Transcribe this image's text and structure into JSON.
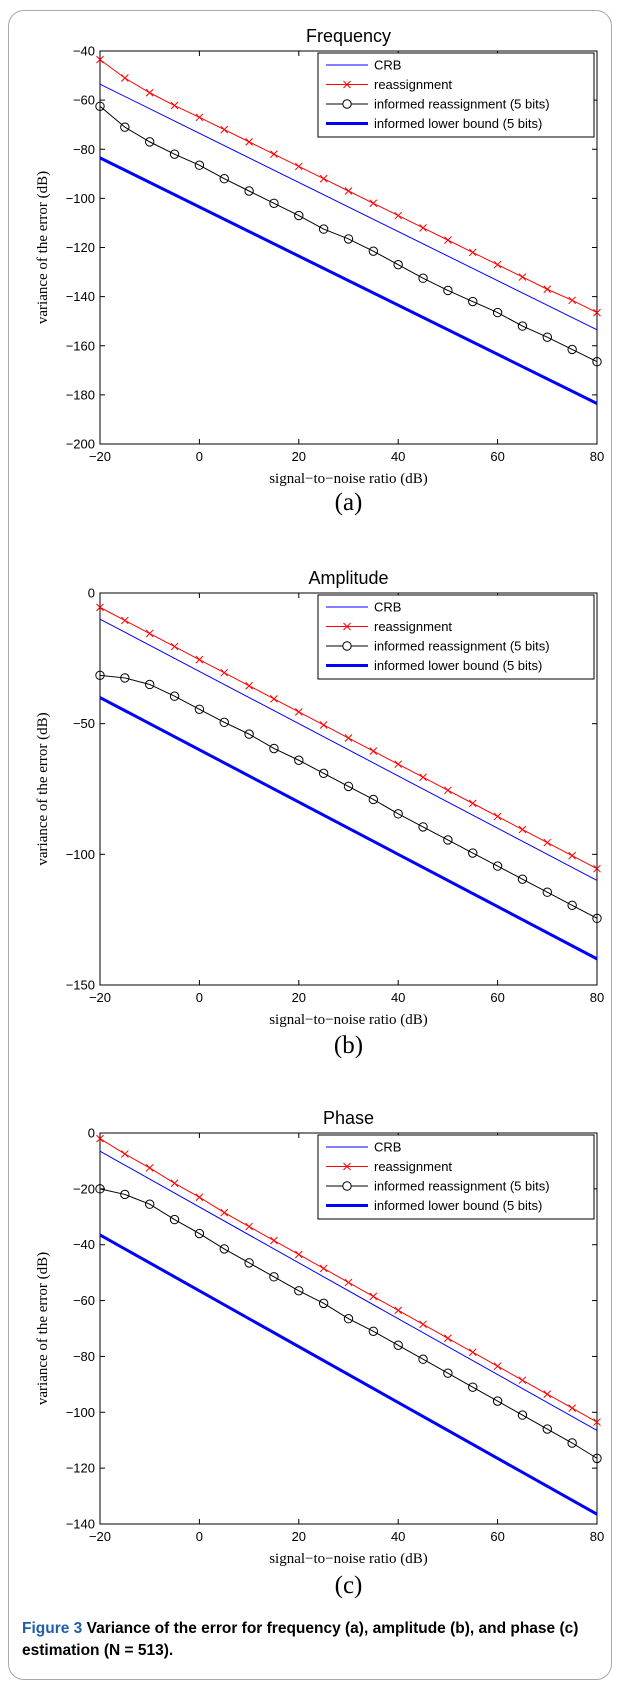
{
  "caption": {
    "label": "Figure 3",
    "text": "Variance of the error for frequency (a), amplitude (b), and phase (c) estimation (N = 513)."
  },
  "colors": {
    "crb": "#0000ff",
    "reassignment": "#ff0000",
    "informed": "#000000",
    "lower_bound": "#0000ff"
  },
  "chart_data": [
    {
      "type": "line",
      "panel_label": "(a)",
      "title": "Frequency",
      "xlabel": "signal−to−noise ratio (dB)",
      "ylabel": "variance of the error (dB)",
      "xlim": [
        -20,
        80
      ],
      "ylim": [
        -200,
        -40
      ],
      "xticks": [
        -20,
        0,
        20,
        40,
        60,
        80
      ],
      "yticks": [
        -200,
        -180,
        -160,
        -140,
        -120,
        -100,
        -80,
        -60,
        -40
      ],
      "grid": false,
      "legend_position": "top-right",
      "x": [
        -20,
        -15,
        -10,
        -5,
        0,
        5,
        10,
        15,
        20,
        25,
        30,
        35,
        40,
        45,
        50,
        55,
        60,
        65,
        70,
        75,
        80
      ],
      "series": [
        {
          "name": "CRB",
          "style": "thin-line",
          "x": [
            -20,
            80
          ],
          "values": [
            -53.5,
            -153.5
          ]
        },
        {
          "name": "reassignment",
          "style": "x-markers",
          "values": [
            -43.5,
            -51,
            -57,
            -62.2,
            -67,
            -72,
            -77,
            -82,
            -87,
            -92,
            -97,
            -102,
            -107,
            -112,
            -117,
            -122,
            -127,
            -132,
            -137,
            -141.5,
            -146.5
          ]
        },
        {
          "name": "informed reassignment (5 bits)",
          "style": "circle-markers",
          "values": [
            -62.5,
            -71,
            -77,
            -82,
            -86.5,
            -92,
            -97,
            -102,
            -107,
            -112.5,
            -116.5,
            -121.5,
            -127,
            -132.5,
            -137.5,
            -142,
            -146.5,
            -152,
            -156.5,
            -161.5,
            -166.5
          ]
        },
        {
          "name": "informed lower bound (5 bits)",
          "style": "thick-line",
          "x": [
            -20,
            80
          ],
          "values": [
            -83.5,
            -183.5
          ]
        }
      ]
    },
    {
      "type": "line",
      "panel_label": "(b)",
      "title": "Amplitude",
      "xlabel": "signal−to−noise ratio (dB)",
      "ylabel": "variance of the error (dB)",
      "xlim": [
        -20,
        80
      ],
      "ylim": [
        -150,
        0
      ],
      "xticks": [
        -20,
        0,
        20,
        40,
        60,
        80
      ],
      "yticks": [
        -150,
        -100,
        -50,
        0
      ],
      "grid": false,
      "legend_position": "top-right",
      "x": [
        -20,
        -15,
        -10,
        -5,
        0,
        5,
        10,
        15,
        20,
        25,
        30,
        35,
        40,
        45,
        50,
        55,
        60,
        65,
        70,
        75,
        80
      ],
      "series": [
        {
          "name": "CRB",
          "style": "thin-line",
          "x": [
            -20,
            80
          ],
          "values": [
            -10,
            -110
          ]
        },
        {
          "name": "reassignment",
          "style": "x-markers",
          "values": [
            -5.5,
            -10.5,
            -15.5,
            -20.5,
            -25.5,
            -30.5,
            -35.5,
            -40.5,
            -45.5,
            -50.5,
            -55.5,
            -60.5,
            -65.5,
            -70.5,
            -75.5,
            -80.5,
            -85.5,
            -90.5,
            -95.5,
            -100.5,
            -105.5
          ]
        },
        {
          "name": "informed reassignment (5 bits)",
          "style": "circle-markers",
          "values": [
            -31.5,
            -32.5,
            -35,
            -39.5,
            -44.5,
            -49.5,
            -54,
            -59.5,
            -64,
            -69,
            -74,
            -79,
            -84.5,
            -89.5,
            -94.5,
            -99.5,
            -104.5,
            -109.5,
            -114.5,
            -119.5,
            -124.5
          ]
        },
        {
          "name": "informed lower bound (5 bits)",
          "style": "thick-line",
          "x": [
            -20,
            80
          ],
          "values": [
            -40,
            -140
          ]
        }
      ]
    },
    {
      "type": "line",
      "panel_label": "(c)",
      "title": "Phase",
      "xlabel": "signal−to−noise ratio (dB)",
      "ylabel": "variance of the error (dB)",
      "xlim": [
        -20,
        80
      ],
      "ylim": [
        -140,
        0
      ],
      "xticks": [
        -20,
        0,
        20,
        40,
        60,
        80
      ],
      "yticks": [
        -140,
        -120,
        -100,
        -80,
        -60,
        -40,
        -20,
        0
      ],
      "grid": false,
      "legend_position": "top-right",
      "x": [
        -20,
        -15,
        -10,
        -5,
        0,
        5,
        10,
        15,
        20,
        25,
        30,
        35,
        40,
        45,
        50,
        55,
        60,
        65,
        70,
        75,
        80
      ],
      "series": [
        {
          "name": "CRB",
          "style": "thin-line",
          "x": [
            -20,
            80
          ],
          "values": [
            -6.5,
            -106.5
          ]
        },
        {
          "name": "reassignment",
          "style": "x-markers",
          "values": [
            -2,
            -7.5,
            -12.5,
            -18,
            -23,
            -28.5,
            -33.5,
            -38.5,
            -43.5,
            -48.5,
            -53.5,
            -58.5,
            -63.5,
            -68.5,
            -73.5,
            -78.5,
            -83.5,
            -88.5,
            -93.5,
            -98.5,
            -103.5
          ]
        },
        {
          "name": "informed reassignment (5 bits)",
          "style": "circle-markers",
          "values": [
            -20,
            -22,
            -25.5,
            -31,
            -36,
            -41.5,
            -46.5,
            -51.5,
            -56.5,
            -61,
            -66.5,
            -71,
            -76,
            -81,
            -86,
            -91,
            -96,
            -101,
            -106,
            -111,
            -116.5
          ]
        },
        {
          "name": "informed lower bound (5 bits)",
          "style": "thick-line",
          "x": [
            -20,
            80
          ],
          "values": [
            -36.5,
            -136.5
          ]
        }
      ]
    }
  ]
}
